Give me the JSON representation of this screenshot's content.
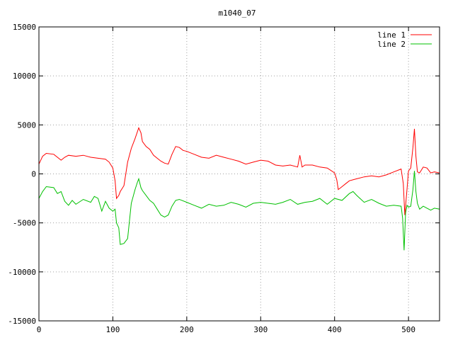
{
  "chart_data": {
    "type": "line",
    "title": "m1040_07",
    "xlabel": "",
    "ylabel": "",
    "xlim": [
      0,
      542
    ],
    "ylim": [
      -15000,
      15000
    ],
    "x_ticks": [
      0,
      100,
      200,
      300,
      400,
      500
    ],
    "y_ticks": [
      -15000,
      -10000,
      -5000,
      0,
      5000,
      10000,
      15000
    ],
    "grid": true,
    "legend_position": "top-right",
    "series": [
      {
        "name": "line 1",
        "color": "#ff0000",
        "x": [
          0,
          5,
          10,
          20,
          30,
          35,
          40,
          50,
          60,
          70,
          80,
          90,
          95,
          100,
          103,
          105,
          108,
          110,
          115,
          120,
          125,
          130,
          135,
          138,
          140,
          145,
          150,
          155,
          160,
          165,
          170,
          175,
          180,
          185,
          190,
          195,
          200,
          210,
          220,
          230,
          240,
          250,
          260,
          270,
          280,
          290,
          300,
          310,
          320,
          330,
          340,
          350,
          353,
          356,
          360,
          370,
          380,
          390,
          400,
          403,
          405,
          410,
          415,
          420,
          430,
          440,
          450,
          460,
          470,
          480,
          490,
          493,
          495,
          498,
          500,
          503,
          506,
          508,
          510,
          512,
          515,
          520,
          525,
          530,
          535,
          542
        ],
        "y": [
          1000,
          1800,
          2100,
          2000,
          1400,
          1700,
          1900,
          1800,
          1900,
          1700,
          1600,
          1500,
          1200,
          600,
          -700,
          -2500,
          -2200,
          -1800,
          -1200,
          1200,
          2600,
          3600,
          4700,
          4200,
          3300,
          2800,
          2500,
          1900,
          1600,
          1300,
          1100,
          1000,
          2000,
          2800,
          2700,
          2400,
          2300,
          2000,
          1700,
          1600,
          1900,
          1700,
          1500,
          1300,
          1000,
          1200,
          1400,
          1300,
          900,
          800,
          900,
          700,
          1900,
          700,
          900,
          900,
          700,
          600,
          100,
          -600,
          -1600,
          -1300,
          -1000,
          -700,
          -500,
          -300,
          -200,
          -300,
          -100,
          200,
          500,
          -1000,
          -4200,
          -1500,
          300,
          600,
          2700,
          4600,
          1800,
          200,
          100,
          700,
          600,
          100,
          200,
          100
        ]
      },
      {
        "name": "line 2",
        "color": "#00c000",
        "x": [
          0,
          5,
          10,
          20,
          25,
          30,
          35,
          40,
          45,
          50,
          60,
          70,
          75,
          80,
          85,
          90,
          95,
          100,
          103,
          105,
          108,
          110,
          115,
          120,
          125,
          130,
          133,
          135,
          138,
          140,
          145,
          150,
          155,
          160,
          165,
          170,
          175,
          180,
          185,
          190,
          200,
          210,
          220,
          230,
          240,
          250,
          260,
          270,
          280,
          290,
          300,
          310,
          320,
          330,
          340,
          350,
          360,
          370,
          380,
          390,
          400,
          410,
          420,
          425,
          430,
          440,
          450,
          460,
          470,
          480,
          490,
          492,
          494,
          496,
          498,
          500,
          503,
          506,
          508,
          510,
          512,
          515,
          520,
          525,
          530,
          535,
          542
        ],
        "y": [
          -2500,
          -1800,
          -1300,
          -1400,
          -2000,
          -1800,
          -2800,
          -3200,
          -2700,
          -3100,
          -2600,
          -2900,
          -2300,
          -2500,
          -3800,
          -2800,
          -3500,
          -3800,
          -3600,
          -5000,
          -5500,
          -7200,
          -7100,
          -6600,
          -3000,
          -1600,
          -900,
          -500,
          -1400,
          -1700,
          -2200,
          -2700,
          -3000,
          -3600,
          -4200,
          -4400,
          -4200,
          -3300,
          -2700,
          -2600,
          -2900,
          -3200,
          -3500,
          -3100,
          -3300,
          -3200,
          -2900,
          -3100,
          -3400,
          -3000,
          -2900,
          -3000,
          -3100,
          -2900,
          -2600,
          -3100,
          -2900,
          -2800,
          -2500,
          -3100,
          -2500,
          -2700,
          -2000,
          -1800,
          -2200,
          -2900,
          -2600,
          -3000,
          -3300,
          -3200,
          -3300,
          -4500,
          -7800,
          -4000,
          -3200,
          -3400,
          -3300,
          -1600,
          300,
          -1800,
          -3000,
          -3600,
          -3300,
          -3500,
          -3700,
          -3500,
          -3600
        ]
      }
    ]
  }
}
